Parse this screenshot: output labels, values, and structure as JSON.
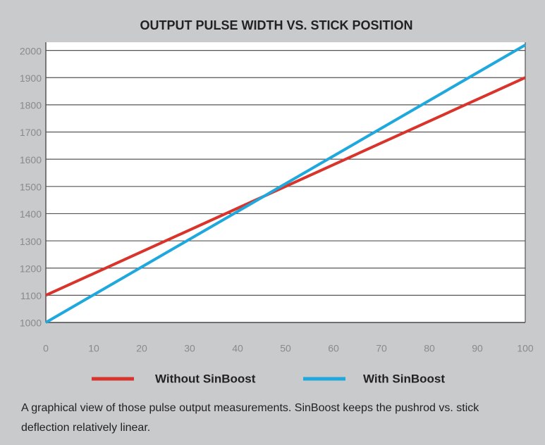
{
  "chart_data": {
    "type": "line",
    "title": "OUTPUT PULSE WIDTH VS. STICK POSITION",
    "x": [
      0,
      100
    ],
    "series": [
      {
        "name": "Without SinBoost",
        "color": "#d9342b",
        "values": [
          1100,
          1900
        ]
      },
      {
        "name": "With SinBoost",
        "color": "#1fa8dd",
        "values": [
          1000,
          2020
        ]
      }
    ],
    "xlim": [
      0,
      100
    ],
    "xticks": [
      0,
      10,
      20,
      30,
      40,
      50,
      60,
      70,
      80,
      90,
      100
    ],
    "ylim": [
      1000,
      2030
    ],
    "yticks": [
      1000,
      1100,
      1200,
      1300,
      1400,
      1500,
      1600,
      1700,
      1800,
      1900,
      2000
    ],
    "grid": true,
    "legend": "bottom",
    "caption": "A graphical view of those pulse output measurements. SinBoost keeps the pushrod vs. stick deflection relatively linear."
  }
}
